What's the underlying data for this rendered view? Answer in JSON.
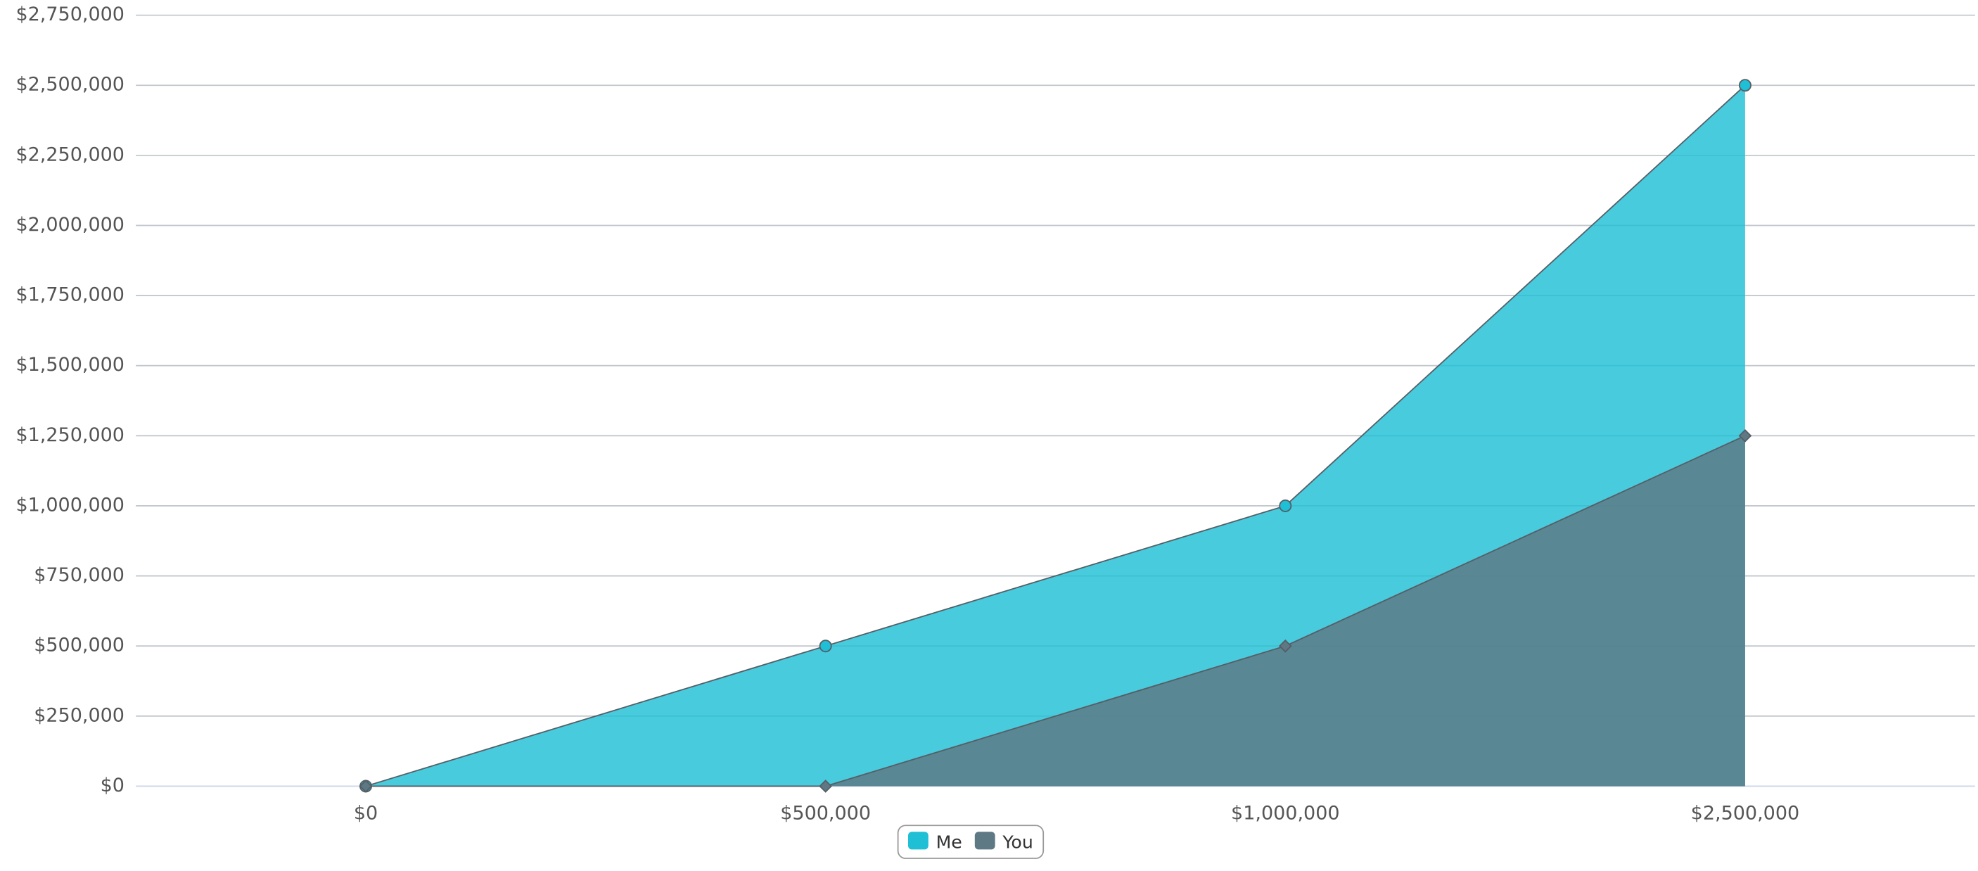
{
  "chart_data": {
    "type": "area",
    "categories": [
      "$0",
      "$500,000",
      "$1,000,000",
      "$2,500,000"
    ],
    "series": [
      {
        "name": "Me",
        "color": "#1fbfd6",
        "marker": "circle",
        "values": [
          0,
          500000,
          1000000,
          2500000
        ]
      },
      {
        "name": "You",
        "color": "#5e7884",
        "marker": "diamond",
        "values": [
          0,
          0,
          500000,
          1250000
        ]
      }
    ],
    "ylim": [
      0,
      2750000
    ],
    "yticks": [
      {
        "value": 0,
        "label": "$0"
      },
      {
        "value": 250000,
        "label": "$250,000"
      },
      {
        "value": 500000,
        "label": "$500,000"
      },
      {
        "value": 750000,
        "label": "$750,000"
      },
      {
        "value": 1000000,
        "label": "$1,000,000"
      },
      {
        "value": 1250000,
        "label": "$1,250,000"
      },
      {
        "value": 1500000,
        "label": "$1,500,000"
      },
      {
        "value": 1750000,
        "label": "$1,750,000"
      },
      {
        "value": 2000000,
        "label": "$2,000,000"
      },
      {
        "value": 2250000,
        "label": "$2,250,000"
      },
      {
        "value": 2500000,
        "label": "$2,500,000"
      },
      {
        "value": 2750000,
        "label": "$2,750,000"
      }
    ],
    "grid": true,
    "legend": "bottom"
  }
}
